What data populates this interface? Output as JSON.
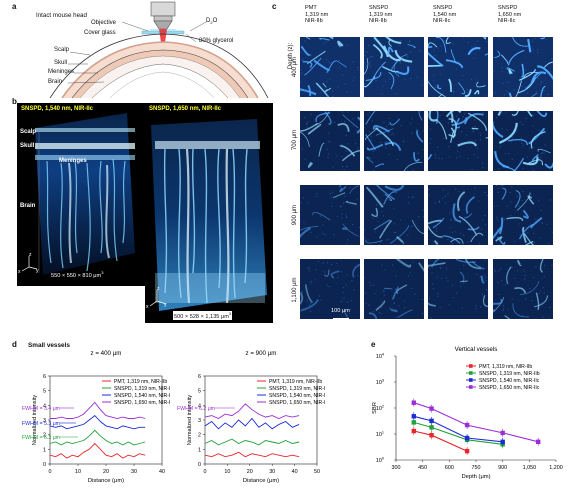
{
  "panels": {
    "a": {
      "letter": "a",
      "title": "Intact mouse head",
      "labels": {
        "objective": "Objective",
        "cover_glass": "Cover glass",
        "d2o": "D",
        "d2o_sub": "2",
        "d2o_o": "O",
        "glycerol": "80% glycerol",
        "scalp": "Scalp",
        "skull": "Skull",
        "meninges": "Meninges",
        "brain": "Brain"
      }
    },
    "b": {
      "letter": "b",
      "left_title": "SNSPD, 1,540 nm, NIR-IIc",
      "right_title": "SNSPD, 1,650 nm, NIR-IIc",
      "left_labels": {
        "scalp": "Scalp",
        "skull": "Skull",
        "meninges": "Meninges",
        "brain": "Brain"
      },
      "left_dims": "550 × 550 × 810 μm",
      "left_dims_sup": "3",
      "right_dims": "500 × 528 × 1,135 μm",
      "right_dims_sup": "3",
      "axes": {
        "x": "x",
        "y": "y",
        "z": "z"
      }
    },
    "c": {
      "letter": "c",
      "columns": [
        {
          "line1": "PMT",
          "line2": "1,319 nm",
          "line3": "NIR-IIb"
        },
        {
          "line1": "SNSPD",
          "line2": "1,319 nm",
          "line3": "NIR-IIb"
        },
        {
          "line1": "SNSPD",
          "line2": "1,540 nm",
          "line3": "NIR-IIc"
        },
        {
          "line1": "SNSPD",
          "line2": "1,650 nm",
          "line3": "NIR-IIc"
        }
      ],
      "depth_title": "Depth (z):",
      "rows": [
        "400 μm",
        "700 μm",
        "900 μm",
        "1,100 μm"
      ],
      "scalebar": "100 μm"
    },
    "d": {
      "letter": "d",
      "subtitle": "Small vessels",
      "left_title": "z = 400 μm",
      "right_title": "z = 900 μm",
      "ylabel": "Normalized intensity",
      "xlabel": "Distance (μm)",
      "legend": [
        "PMT, 1,319 nm, NIR-IIb",
        "SNSPD, 1,319 nm, NIR-IIb",
        "SNSPD, 1,540 nm, NIR-IIc",
        "SNSPD, 1,650 nm, NIR-IIc"
      ],
      "left_fwhm": [
        "FWHM = 3.4 μm",
        "FWHM = 5.3 μm",
        "FWHM = 6.2 μm"
      ],
      "right_fwhm": [
        "FWHM = 6.2 μm"
      ],
      "yticks": [
        "0",
        "1",
        "2",
        "3",
        "4",
        "5",
        "6"
      ],
      "left_xticks": [
        "0",
        "10",
        "20",
        "30",
        "40"
      ],
      "right_xticks": [
        "0",
        "10",
        "20",
        "30",
        "40",
        "50"
      ]
    },
    "e": {
      "letter": "e",
      "subtitle": "Vertical vessels",
      "legend": [
        "PMT, 1,319 nm, NIR-IIb",
        "SNSPD, 1,319 nm, NIR-IIb",
        "SNSPD, 1,540 nm, NIR-IIc",
        "SNSPD, 1,650 nm, NIR-IIc"
      ]
    }
  },
  "colors": {
    "red": "#e8262b",
    "green": "#22a13a",
    "blue": "#1b2bd6",
    "purple": "#9a2fd6",
    "cyan": "#66ccff",
    "yellow": "#ffff33"
  },
  "chart_data": [
    {
      "type": "line",
      "title": "z = 400 μm",
      "xlabel": "Distance (μm)",
      "ylabel": "Normalized intensity",
      "xlim": [
        0,
        40
      ],
      "ylim": [
        0,
        6
      ],
      "series": [
        {
          "name": "PMT, 1,319 nm, NIR-IIb",
          "color": "#e8262b",
          "x": [
            0,
            2,
            4,
            6,
            8,
            10,
            12,
            14,
            16,
            18,
            20,
            22,
            24,
            26,
            28,
            30,
            32,
            34
          ],
          "y": [
            0.6,
            0.5,
            0.7,
            0.4,
            0.6,
            0.5,
            0.8,
            1.0,
            1.4,
            1.0,
            0.6,
            0.5,
            0.7,
            0.4,
            0.6,
            0.5,
            0.7,
            0.6
          ]
        },
        {
          "name": "SNSPD, 1,319 nm, NIR-IIb",
          "color": "#22a13a",
          "x": [
            0,
            2,
            4,
            6,
            8,
            10,
            12,
            14,
            16,
            18,
            20,
            22,
            24,
            26,
            28,
            30,
            32,
            34
          ],
          "y": [
            1.4,
            1.5,
            1.3,
            1.5,
            1.4,
            1.5,
            1.6,
            1.9,
            2.3,
            1.9,
            1.6,
            1.4,
            1.5,
            1.3,
            1.5,
            1.3,
            1.4,
            1.5
          ]
        },
        {
          "name": "SNSPD, 1,540 nm, NIR-IIc",
          "color": "#1b2bd6",
          "x": [
            0,
            2,
            4,
            6,
            8,
            10,
            12,
            14,
            16,
            18,
            20,
            22,
            24,
            26,
            28,
            30,
            32,
            34
          ],
          "y": [
            2.6,
            2.5,
            2.6,
            2.4,
            2.5,
            2.6,
            2.7,
            3.0,
            3.3,
            2.9,
            2.6,
            2.5,
            2.4,
            2.6,
            2.5,
            2.4,
            2.5,
            2.5
          ]
        },
        {
          "name": "SNSPD, 1,650 nm, NIR-IIc",
          "color": "#9a2fd6",
          "x": [
            0,
            2,
            4,
            6,
            8,
            10,
            12,
            14,
            16,
            18,
            20,
            22,
            24,
            26,
            28,
            30,
            32,
            34
          ],
          "y": [
            3.1,
            3.1,
            3.2,
            3.1,
            3.1,
            3.2,
            3.4,
            3.8,
            4.2,
            3.7,
            3.3,
            3.2,
            3.1,
            3.2,
            3.1,
            3.1,
            3.2,
            3.1
          ]
        }
      ]
    },
    {
      "type": "line",
      "title": "z = 900 μm",
      "xlabel": "Distance (μm)",
      "ylabel": "Normalized intensity",
      "xlim": [
        0,
        50
      ],
      "ylim": [
        0,
        6
      ],
      "series": [
        {
          "name": "PMT, 1,319 nm, NIR-IIb",
          "color": "#e8262b",
          "x": [
            0,
            3,
            6,
            9,
            12,
            15,
            18,
            21,
            24,
            27,
            30,
            33,
            36,
            39,
            42
          ],
          "y": [
            0.6,
            0.5,
            0.7,
            0.5,
            0.6,
            0.8,
            0.5,
            0.7,
            0.6,
            0.5,
            0.7,
            0.6,
            0.5,
            0.6,
            0.5
          ]
        },
        {
          "name": "SNSPD, 1,319 nm, NIR-IIb",
          "color": "#22a13a",
          "x": [
            0,
            3,
            6,
            9,
            12,
            15,
            18,
            21,
            24,
            27,
            30,
            33,
            36,
            39,
            42
          ],
          "y": [
            1.4,
            1.6,
            1.3,
            1.5,
            1.7,
            1.4,
            1.6,
            1.5,
            1.3,
            1.6,
            1.5,
            1.4,
            1.6,
            1.4,
            1.5
          ]
        },
        {
          "name": "SNSPD, 1,540 nm, NIR-IIc",
          "color": "#1b2bd6",
          "x": [
            0,
            3,
            6,
            9,
            12,
            15,
            18,
            21,
            24,
            27,
            30,
            33,
            36,
            39,
            42
          ],
          "y": [
            2.6,
            2.9,
            2.4,
            2.8,
            2.5,
            3.0,
            2.6,
            3.1,
            2.5,
            2.8,
            2.4,
            2.7,
            2.9,
            2.5,
            2.7
          ]
        },
        {
          "name": "SNSPD, 1,650 nm, NIR-IIc",
          "color": "#9a2fd6",
          "x": [
            0,
            3,
            6,
            9,
            12,
            15,
            18,
            21,
            24,
            27,
            30,
            33,
            36,
            39,
            42
          ],
          "y": [
            3.2,
            3.3,
            3.1,
            3.4,
            3.3,
            3.6,
            4.1,
            3.7,
            3.4,
            3.2,
            3.3,
            3.1,
            3.3,
            3.2,
            3.3
          ]
        }
      ]
    },
    {
      "type": "line",
      "title": "Vertical vessels",
      "xlabel": "Depth (μm)",
      "ylabel": "SBR",
      "xlim": [
        300,
        1200
      ],
      "ylim": [
        1,
        10000
      ],
      "yscale": "log",
      "xticks": [
        "300",
        "450",
        "600",
        "750",
        "900",
        "1,050",
        "1,200"
      ],
      "yticks": [
        "10^0",
        "10^1",
        "10^2",
        "10^3",
        "10^4"
      ],
      "series": [
        {
          "name": "PMT, 1,319 nm, NIR-IIb",
          "color": "#e8262b",
          "x": [
            400,
            500,
            700
          ],
          "y": [
            13,
            9,
            2.2
          ]
        },
        {
          "name": "SNSPD, 1,319 nm, NIR-IIb",
          "color": "#22a13a",
          "x": [
            400,
            500,
            700,
            900
          ],
          "y": [
            28,
            18,
            6,
            4
          ]
        },
        {
          "name": "SNSPD, 1,540 nm, NIR-IIc",
          "color": "#1b2bd6",
          "x": [
            400,
            500,
            700,
            900
          ],
          "y": [
            48,
            32,
            7,
            5
          ]
        },
        {
          "name": "SNSPD, 1,650 nm, NIR-IIc",
          "color": "#9a2fd6",
          "x": [
            400,
            500,
            700,
            900,
            1100
          ],
          "y": [
            160,
            95,
            22,
            11,
            5
          ]
        }
      ]
    }
  ]
}
